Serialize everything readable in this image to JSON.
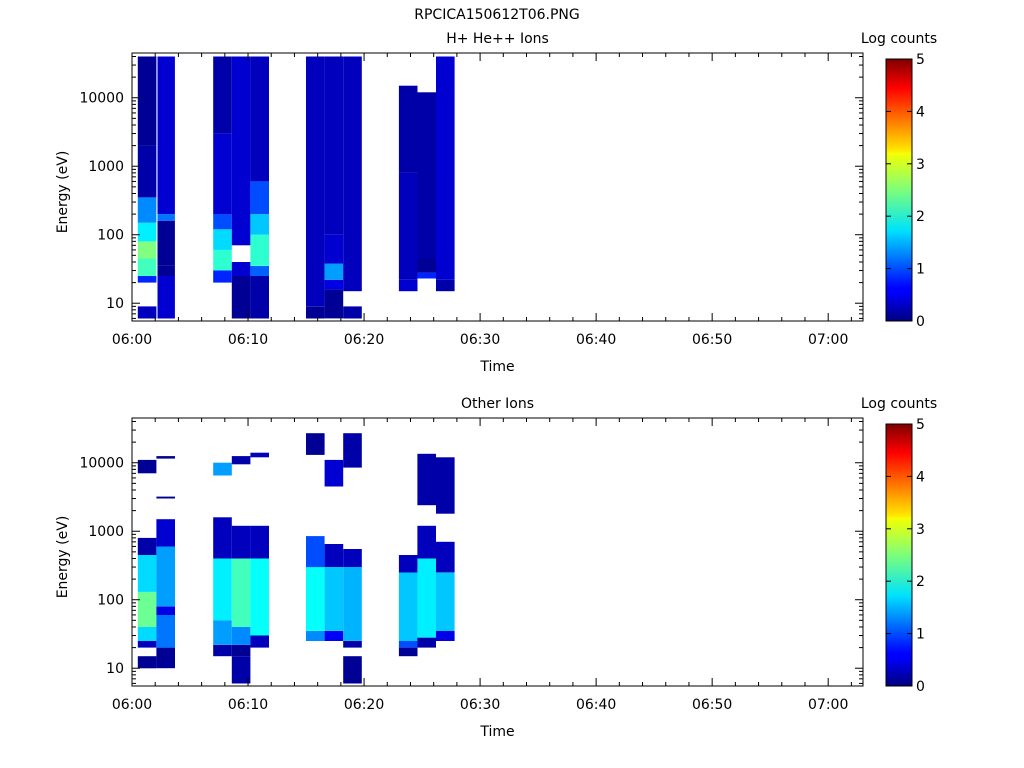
{
  "figure_title": "RPCICA150612T06.PNG",
  "chart_data": [
    {
      "type": "heatmap",
      "title": "H+ He++ Ions",
      "xlabel": "Time",
      "ylabel": "Energy (eV)",
      "x_unit": "minutes after 06:00",
      "xlim": [
        0,
        63
      ],
      "ylim": [
        5.5,
        45000
      ],
      "y_scale": "log",
      "x_ticks": [
        0,
        10,
        20,
        30,
        40,
        50,
        60
      ],
      "x_tick_labels": [
        "06:00",
        "06:10",
        "06:20",
        "06:30",
        "06:40",
        "06:50",
        "07:00"
      ],
      "y_ticks": [
        10,
        100,
        1000,
        10000
      ],
      "y_tick_labels": [
        "10",
        "100",
        "1000",
        "10000"
      ],
      "colorbar": {
        "label": "Log counts",
        "range": [
          0,
          5
        ],
        "ticks": [
          0,
          1,
          2,
          3,
          4,
          5
        ]
      },
      "colormap": "jet",
      "grid": false,
      "columns": [
        {
          "t_start": 0.5,
          "t_end": 2.1,
          "segments": [
            {
              "e_low": 6,
              "e_high": 9,
              "log_counts": 0.3
            },
            {
              "e_low": 20,
              "e_high": 25,
              "log_counts": 0.8
            },
            {
              "e_low": 25,
              "e_high": 45,
              "log_counts": 2.2
            },
            {
              "e_low": 45,
              "e_high": 80,
              "log_counts": 2.5
            },
            {
              "e_low": 80,
              "e_high": 150,
              "log_counts": 1.8
            },
            {
              "e_low": 150,
              "e_high": 350,
              "log_counts": 1.3
            },
            {
              "e_low": 350,
              "e_high": 2000,
              "log_counts": 0.2
            },
            {
              "e_low": 2000,
              "e_high": 40000,
              "log_counts": 0.1
            }
          ]
        },
        {
          "t_start": 2.2,
          "t_end": 3.7,
          "segments": [
            {
              "e_low": 6,
              "e_high": 25,
              "log_counts": 0.4
            },
            {
              "e_low": 25,
              "e_high": 35,
              "log_counts": 0.1
            },
            {
              "e_low": 35,
              "e_high": 160,
              "log_counts": 0.1
            },
            {
              "e_low": 160,
              "e_high": 200,
              "log_counts": 1.2
            },
            {
              "e_low": 200,
              "e_high": 40000,
              "log_counts": 0.4
            }
          ]
        },
        {
          "t_start": 7.0,
          "t_end": 8.6,
          "segments": [
            {
              "e_low": 20,
              "e_high": 30,
              "log_counts": 0.8
            },
            {
              "e_low": 30,
              "e_high": 60,
              "log_counts": 2.1
            },
            {
              "e_low": 60,
              "e_high": 120,
              "log_counts": 1.7
            },
            {
              "e_low": 120,
              "e_high": 200,
              "log_counts": 1.0
            },
            {
              "e_low": 200,
              "e_high": 3000,
              "log_counts": 0.4
            },
            {
              "e_low": 3000,
              "e_high": 40000,
              "log_counts": 0.2
            }
          ]
        },
        {
          "t_start": 8.6,
          "t_end": 10.2,
          "segments": [
            {
              "e_low": 6,
              "e_high": 25,
              "log_counts": 0.1
            },
            {
              "e_low": 25,
              "e_high": 40,
              "log_counts": 0.4
            },
            {
              "e_low": 70,
              "e_high": 40000,
              "log_counts": 0.4
            }
          ]
        },
        {
          "t_start": 10.2,
          "t_end": 11.8,
          "segments": [
            {
              "e_low": 6,
              "e_high": 25,
              "log_counts": 0.2
            },
            {
              "e_low": 25,
              "e_high": 35,
              "log_counts": 1.1
            },
            {
              "e_low": 35,
              "e_high": 100,
              "log_counts": 2.1
            },
            {
              "e_low": 100,
              "e_high": 200,
              "log_counts": 1.6
            },
            {
              "e_low": 200,
              "e_high": 600,
              "log_counts": 1.0
            },
            {
              "e_low": 600,
              "e_high": 40000,
              "log_counts": 0.3
            }
          ]
        },
        {
          "t_start": 15.0,
          "t_end": 16.6,
          "segments": [
            {
              "e_low": 6,
              "e_high": 9,
              "log_counts": 0.1
            },
            {
              "e_low": 9,
              "e_high": 40000,
              "log_counts": 0.3
            }
          ]
        },
        {
          "t_start": 16.6,
          "t_end": 18.2,
          "segments": [
            {
              "e_low": 6,
              "e_high": 16,
              "log_counts": 0.1
            },
            {
              "e_low": 16,
              "e_high": 22,
              "log_counts": 0.5
            },
            {
              "e_low": 22,
              "e_high": 38,
              "log_counts": 1.4
            },
            {
              "e_low": 38,
              "e_high": 100,
              "log_counts": 0.4
            },
            {
              "e_low": 100,
              "e_high": 40000,
              "log_counts": 0.3
            }
          ]
        },
        {
          "t_start": 18.2,
          "t_end": 19.8,
          "segments": [
            {
              "e_low": 6,
              "e_high": 9,
              "log_counts": 0.2
            },
            {
              "e_low": 15,
              "e_high": 40000,
              "log_counts": 0.3
            }
          ]
        },
        {
          "t_start": 23.0,
          "t_end": 24.6,
          "segments": [
            {
              "e_low": 15,
              "e_high": 22,
              "log_counts": 0.4
            },
            {
              "e_low": 22,
              "e_high": 800,
              "log_counts": 0.3
            },
            {
              "e_low": 800,
              "e_high": 15000,
              "log_counts": 0.2
            }
          ]
        },
        {
          "t_start": 24.6,
          "t_end": 26.2,
          "segments": [
            {
              "e_low": 23,
              "e_high": 28,
              "log_counts": 0.8
            },
            {
              "e_low": 28,
              "e_high": 45,
              "log_counts": 0.1
            },
            {
              "e_low": 45,
              "e_high": 12000,
              "log_counts": 0.2
            }
          ]
        },
        {
          "t_start": 26.2,
          "t_end": 27.8,
          "segments": [
            {
              "e_low": 15,
              "e_high": 22,
              "log_counts": 0.2
            },
            {
              "e_low": 22,
              "e_high": 40000,
              "log_counts": 0.4
            }
          ]
        }
      ]
    },
    {
      "type": "heatmap",
      "title": "Other Ions",
      "xlabel": "Time",
      "ylabel": "Energy (eV)",
      "x_unit": "minutes after 06:00",
      "xlim": [
        0,
        63
      ],
      "ylim": [
        5.5,
        45000
      ],
      "y_scale": "log",
      "x_ticks": [
        0,
        10,
        20,
        30,
        40,
        50,
        60
      ],
      "x_tick_labels": [
        "06:00",
        "06:10",
        "06:20",
        "06:30",
        "06:40",
        "06:50",
        "07:00"
      ],
      "y_ticks": [
        10,
        100,
        1000,
        10000
      ],
      "y_tick_labels": [
        "10",
        "100",
        "1000",
        "10000"
      ],
      "colorbar": {
        "label": "Log counts",
        "range": [
          0,
          5
        ],
        "ticks": [
          0,
          1,
          2,
          3,
          4,
          5
        ]
      },
      "colormap": "jet",
      "grid": false,
      "columns": [
        {
          "t_start": 0.5,
          "t_end": 2.1,
          "segments": [
            {
              "e_low": 10,
              "e_high": 15,
              "log_counts": 0.1
            },
            {
              "e_low": 20,
              "e_high": 25,
              "log_counts": 0.3
            },
            {
              "e_low": 25,
              "e_high": 40,
              "log_counts": 1.7
            },
            {
              "e_low": 40,
              "e_high": 130,
              "log_counts": 2.4
            },
            {
              "e_low": 130,
              "e_high": 450,
              "log_counts": 1.7
            },
            {
              "e_low": 450,
              "e_high": 800,
              "log_counts": 0.2
            },
            {
              "e_low": 7000,
              "e_high": 11000,
              "log_counts": 0.1
            }
          ]
        },
        {
          "t_start": 2.1,
          "t_end": 3.7,
          "segments": [
            {
              "e_low": 10,
              "e_high": 20,
              "log_counts": 0.1
            },
            {
              "e_low": 20,
              "e_high": 60,
              "log_counts": 1.2
            },
            {
              "e_low": 60,
              "e_high": 80,
              "log_counts": 0.5
            },
            {
              "e_low": 80,
              "e_high": 600,
              "log_counts": 1.4
            },
            {
              "e_low": 600,
              "e_high": 1500,
              "log_counts": 0.4
            },
            {
              "e_low": 3000,
              "e_high": 3200,
              "log_counts": 0.1
            },
            {
              "e_low": 11500,
              "e_high": 12500,
              "log_counts": 0.1
            }
          ]
        },
        {
          "t_start": 7.0,
          "t_end": 8.6,
          "segments": [
            {
              "e_low": 15,
              "e_high": 22,
              "log_counts": 0.2
            },
            {
              "e_low": 22,
              "e_high": 50,
              "log_counts": 1.4
            },
            {
              "e_low": 50,
              "e_high": 400,
              "log_counts": 1.8
            },
            {
              "e_low": 400,
              "e_high": 1600,
              "log_counts": 0.3
            },
            {
              "e_low": 6500,
              "e_high": 10000,
              "log_counts": 1.4
            }
          ]
        },
        {
          "t_start": 8.6,
          "t_end": 10.2,
          "segments": [
            {
              "e_low": 6,
              "e_high": 15,
              "log_counts": 0.2
            },
            {
              "e_low": 15,
              "e_high": 22,
              "log_counts": 0.1
            },
            {
              "e_low": 22,
              "e_high": 40,
              "log_counts": 1.3
            },
            {
              "e_low": 40,
              "e_high": 400,
              "log_counts": 2.2
            },
            {
              "e_low": 400,
              "e_high": 1200,
              "log_counts": 0.3
            },
            {
              "e_low": 9500,
              "e_high": 12500,
              "log_counts": 0.2
            }
          ]
        },
        {
          "t_start": 10.2,
          "t_end": 11.8,
          "segments": [
            {
              "e_low": 20,
              "e_high": 30,
              "log_counts": 0.3
            },
            {
              "e_low": 30,
              "e_high": 400,
              "log_counts": 1.9
            },
            {
              "e_low": 400,
              "e_high": 1200,
              "log_counts": 0.3
            },
            {
              "e_low": 12000,
              "e_high": 14000,
              "log_counts": 0.3
            }
          ]
        },
        {
          "t_start": 15.0,
          "t_end": 16.6,
          "segments": [
            {
              "e_low": 25,
              "e_high": 35,
              "log_counts": 1.3
            },
            {
              "e_low": 35,
              "e_high": 300,
              "log_counts": 1.9
            },
            {
              "e_low": 300,
              "e_high": 850,
              "log_counts": 1.0
            },
            {
              "e_low": 13000,
              "e_high": 27000,
              "log_counts": 0.1
            }
          ]
        },
        {
          "t_start": 16.6,
          "t_end": 18.2,
          "segments": [
            {
              "e_low": 25,
              "e_high": 35,
              "log_counts": 0.6
            },
            {
              "e_low": 35,
              "e_high": 300,
              "log_counts": 1.6
            },
            {
              "e_low": 300,
              "e_high": 650,
              "log_counts": 0.3
            },
            {
              "e_low": 4500,
              "e_high": 11000,
              "log_counts": 0.4
            }
          ]
        },
        {
          "t_start": 18.2,
          "t_end": 19.8,
          "segments": [
            {
              "e_low": 6,
              "e_high": 15,
              "log_counts": 0.1
            },
            {
              "e_low": 20,
              "e_high": 25,
              "log_counts": 0.2
            },
            {
              "e_low": 25,
              "e_high": 300,
              "log_counts": 1.5
            },
            {
              "e_low": 300,
              "e_high": 550,
              "log_counts": 0.3
            },
            {
              "e_low": 8500,
              "e_high": 27000,
              "log_counts": 0.2
            }
          ]
        },
        {
          "t_start": 23.0,
          "t_end": 24.6,
          "segments": [
            {
              "e_low": 15,
              "e_high": 20,
              "log_counts": 0.1
            },
            {
              "e_low": 20,
              "e_high": 25,
              "log_counts": 1.0
            },
            {
              "e_low": 25,
              "e_high": 250,
              "log_counts": 1.6
            },
            {
              "e_low": 250,
              "e_high": 450,
              "log_counts": 0.3
            }
          ]
        },
        {
          "t_start": 24.6,
          "t_end": 26.2,
          "segments": [
            {
              "e_low": 20,
              "e_high": 28,
              "log_counts": 0.2
            },
            {
              "e_low": 28,
              "e_high": 400,
              "log_counts": 1.8
            },
            {
              "e_low": 400,
              "e_high": 1200,
              "log_counts": 0.3
            },
            {
              "e_low": 2400,
              "e_high": 13500,
              "log_counts": 0.2
            }
          ]
        },
        {
          "t_start": 26.2,
          "t_end": 27.8,
          "segments": [
            {
              "e_low": 25,
              "e_high": 35,
              "log_counts": 0.5
            },
            {
              "e_low": 35,
              "e_high": 250,
              "log_counts": 1.6
            },
            {
              "e_low": 250,
              "e_high": 700,
              "log_counts": 0.3
            },
            {
              "e_low": 1800,
              "e_high": 12000,
              "log_counts": 0.2
            }
          ]
        }
      ]
    }
  ]
}
